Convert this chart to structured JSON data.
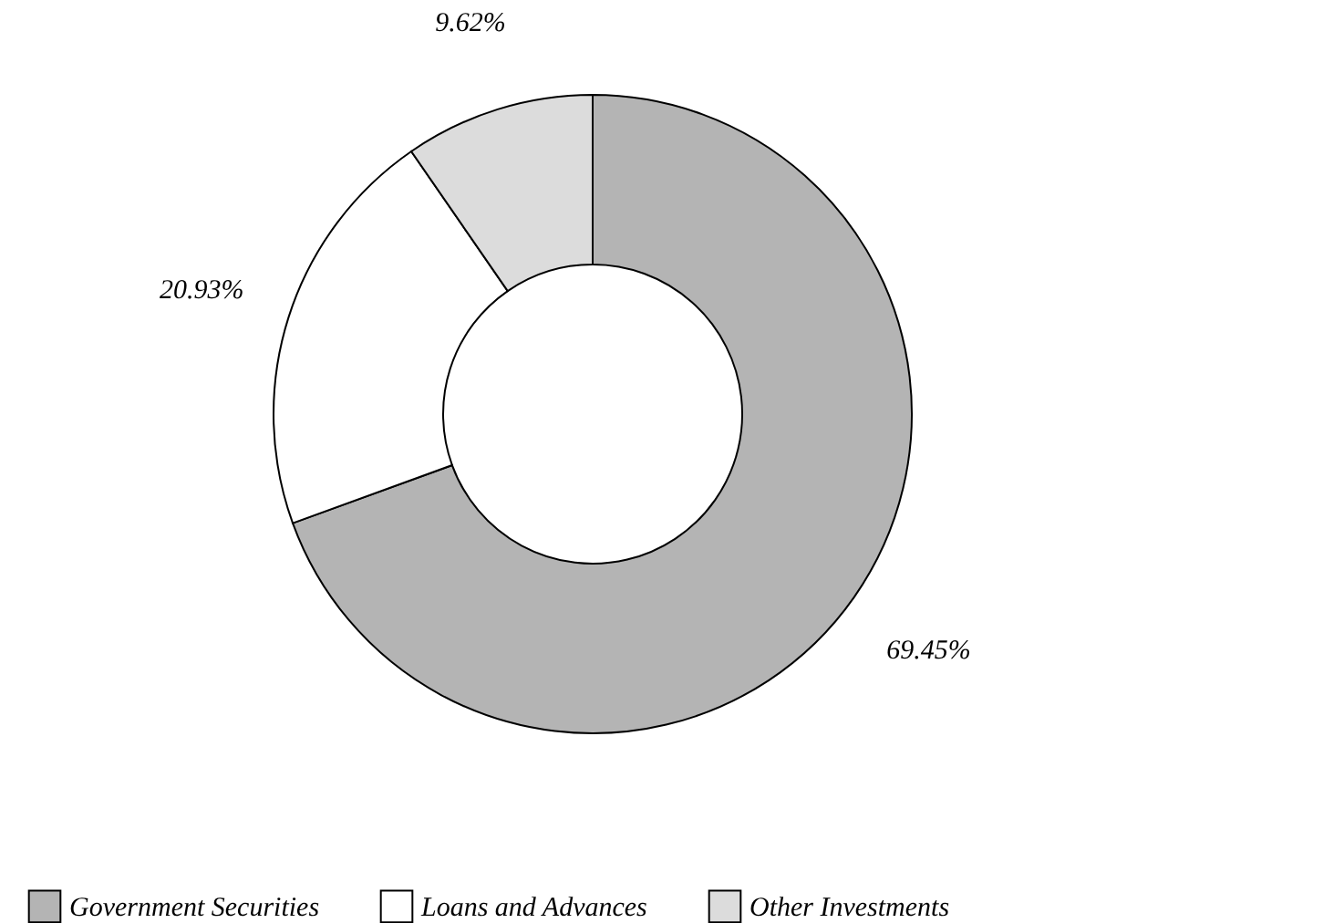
{
  "chart_data": {
    "type": "donut",
    "categories": [
      "Government Securities",
      "Loans and Advances",
      "Other Investments"
    ],
    "values": [
      69.45,
      20.93,
      9.62
    ],
    "value_labels": [
      "69.45%",
      "20.93%",
      "9.62%"
    ],
    "colors": [
      "#b4b4b4",
      "#ffffff",
      "#dcdcdc"
    ],
    "legend": "bottom"
  }
}
